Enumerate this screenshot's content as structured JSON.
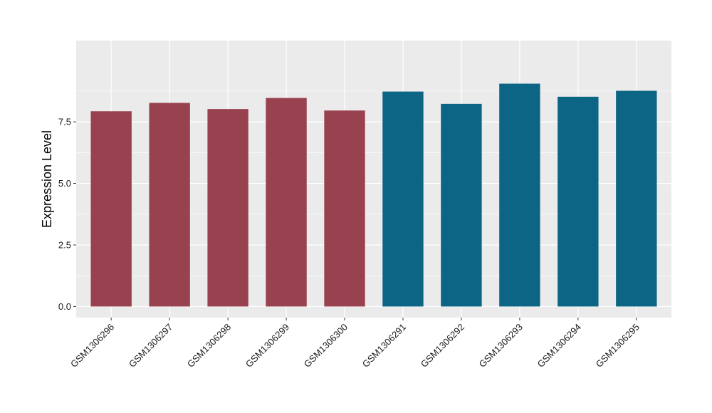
{
  "chart_data": {
    "type": "bar",
    "title": "",
    "xlabel": "",
    "ylabel": "Expression Level",
    "ylim": [
      -0.45,
      10.8
    ],
    "yticks": [
      0.0,
      2.5,
      5.0,
      7.5
    ],
    "ytick_labels": [
      "0.0",
      "2.5",
      "5.0",
      "7.5"
    ],
    "grid": true,
    "legend": "none",
    "categories": [
      "GSM1306296",
      "GSM1306297",
      "GSM1306298",
      "GSM1306299",
      "GSM1306300",
      "GSM1306291",
      "GSM1306292",
      "GSM1306293",
      "GSM1306294",
      "GSM1306295"
    ],
    "values": [
      7.93,
      8.27,
      8.02,
      8.47,
      7.96,
      8.73,
      8.23,
      9.05,
      8.52,
      8.76
    ],
    "bar_colors": [
      "#99424f",
      "#99424f",
      "#99424f",
      "#99424f",
      "#99424f",
      "#0c6585",
      "#0c6585",
      "#0c6585",
      "#0c6585",
      "#0c6585"
    ],
    "panel_color": "#ebebeb",
    "grid_color": "#ffffff"
  }
}
